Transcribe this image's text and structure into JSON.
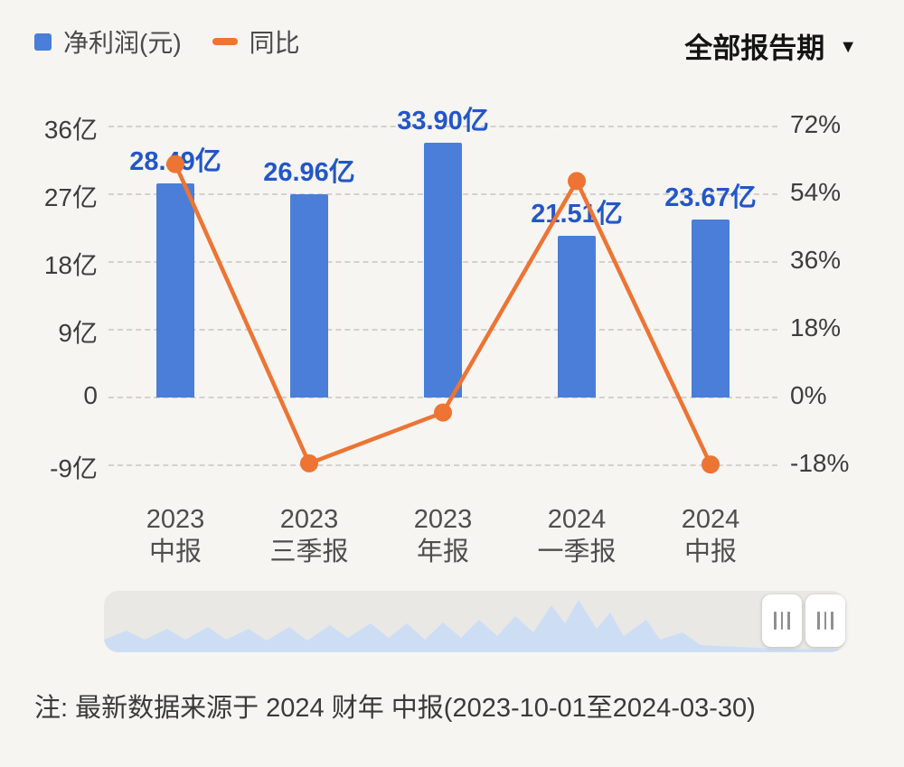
{
  "legend": {
    "items": [
      {
        "label": "净利润(元)",
        "swatch": "blue-square",
        "color": "#4a7ed8"
      },
      {
        "label": "同比",
        "swatch": "orange-dash",
        "color": "#ed7433"
      }
    ]
  },
  "period_selector": {
    "label": "全部报告期"
  },
  "chart_data": {
    "type": "bar+line",
    "title": "",
    "categories": [
      "2023 中报",
      "2023 三季报",
      "2023 年报",
      "2024 一季报",
      "2024 中报"
    ],
    "categories_two_line": [
      [
        "2023",
        "中报"
      ],
      [
        "2023",
        "三季报"
      ],
      [
        "2023",
        "年报"
      ],
      [
        "2024",
        "一季报"
      ],
      [
        "2024",
        "中报"
      ]
    ],
    "bar_series": {
      "name": "净利润(元)",
      "unit": "亿",
      "values": [
        28.49,
        26.96,
        33.9,
        21.51,
        23.67
      ],
      "labels": [
        "28.49亿",
        "26.96亿",
        "33.90亿",
        "21.51亿",
        "23.67亿"
      ],
      "color": "#4a7ed8",
      "label_color": "#2356c8"
    },
    "line_series": {
      "name": "同比",
      "unit": "%",
      "values": [
        62,
        -17.5,
        -4,
        57.5,
        -17.8
      ],
      "color": "#ed7433"
    },
    "y_axis_left": {
      "tick_labels": [
        "36亿",
        "27亿",
        "18亿",
        "9亿",
        "0",
        "-9亿"
      ],
      "tick_values": [
        36,
        27,
        18,
        9,
        0,
        -9
      ]
    },
    "y_axis_right": {
      "tick_labels": [
        "72%",
        "54%",
        "36%",
        "18%",
        "0%",
        "-18%"
      ],
      "tick_values": [
        72,
        54,
        36,
        18,
        0,
        -18
      ]
    },
    "grid": "dashed-horizontal",
    "legend_position": "top-left"
  },
  "footnote": "注: 最新数据来源于 2024 财年 中报(2023-10-01至2024-03-30)"
}
